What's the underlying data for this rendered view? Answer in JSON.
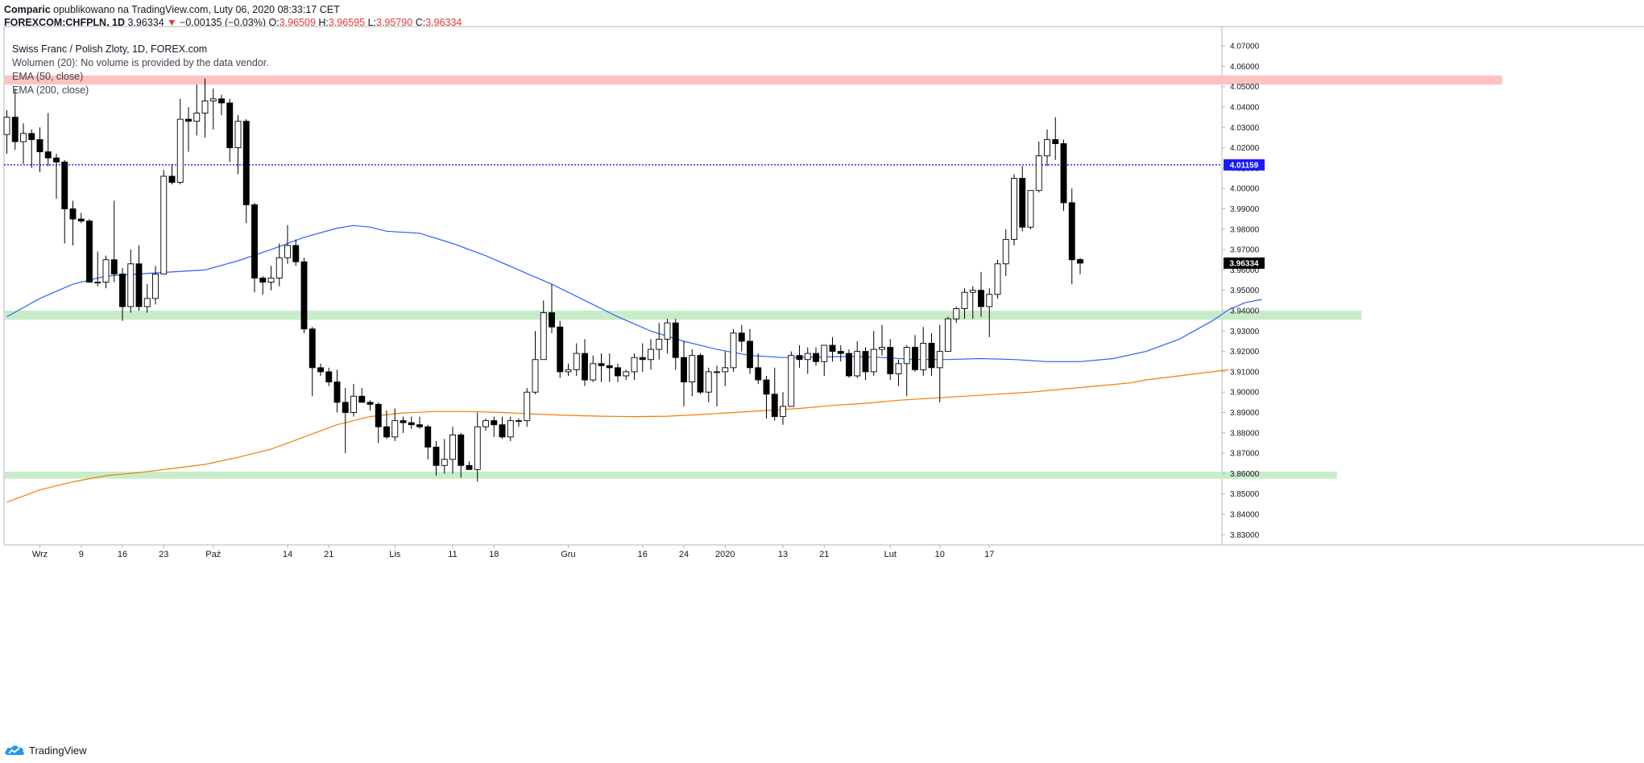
{
  "header": {
    "author": "Comparic",
    "published_text": "opublikowano na TradingView.com, Luty 06, 2020 08:33:17 CET",
    "symbol": "FOREXCOM:CHFPLN, 1D",
    "last_price": "3.96334",
    "change_arrow": "▼",
    "change": "−0.00135 (−0.03%)",
    "open_label": "O:",
    "open": "3.96509",
    "high_label": "H:",
    "high": "3.96595",
    "low_label": "L:",
    "low": "3.95790",
    "close_label": "C:",
    "close": "3.96334"
  },
  "legend": {
    "title": "Swiss Franc / Polish Zloty, 1D, FOREX.com",
    "volume": "Wolumen (20): No volume is provided by the data vendor.",
    "ema50": "EMA (50, close)",
    "ema200": "EMA (200, close)"
  },
  "footer": {
    "brand": "TradingView"
  },
  "colors": {
    "up_candle": "#ffffff",
    "down_candle": "#000000",
    "wick": "#000000",
    "ema50": "#2962ff",
    "ema200": "#f57c00",
    "resistance_zone": "#ffc2c2",
    "support_zone": "#c8ecc8",
    "hline": "#1a1aff",
    "price_badge": "#000000",
    "hline_badge": "#1a1aff"
  },
  "chart_data": {
    "type": "candlestick",
    "ylim": [
      3.825,
      4.0795
    ],
    "y_ticks": [
      "4.07000",
      "4.06000",
      "4.05000",
      "4.04000",
      "4.03000",
      "4.02000",
      "4.01000",
      "4.00000",
      "3.99000",
      "3.98000",
      "3.97000",
      "3.96000",
      "3.95000",
      "3.94000",
      "3.93000",
      "3.92000",
      "3.91000",
      "3.90000",
      "3.89000",
      "3.88000",
      "3.87000",
      "3.86000",
      "3.85000",
      "3.84000",
      "3.83000"
    ],
    "x_ticks": [
      {
        "label": "Wrz",
        "idx": 4
      },
      {
        "label": "9",
        "idx": 9
      },
      {
        "label": "16",
        "idx": 14
      },
      {
        "label": "23",
        "idx": 19
      },
      {
        "label": "Paź",
        "idx": 25
      },
      {
        "label": "14",
        "idx": 34
      },
      {
        "label": "21",
        "idx": 39
      },
      {
        "label": "Lis",
        "idx": 47
      },
      {
        "label": "11",
        "idx": 54
      },
      {
        "label": "18",
        "idx": 59
      },
      {
        "label": "Gru",
        "idx": 68
      },
      {
        "label": "16",
        "idx": 77
      },
      {
        "label": "24",
        "idx": 82
      },
      {
        "label": "2020",
        "idx": 87
      },
      {
        "label": "13",
        "idx": 94
      },
      {
        "label": "21",
        "idx": 99
      },
      {
        "label": "Lut",
        "idx": 107
      },
      {
        "label": "10",
        "idx": 113
      },
      {
        "label": "17",
        "idx": 119
      }
    ],
    "candles": [
      [
        4.0265,
        4.0385,
        4.017,
        4.035
      ],
      [
        4.035,
        4.049,
        4.019,
        4.023
      ],
      [
        4.023,
        4.032,
        4.012,
        4.027
      ],
      [
        4.027,
        4.029,
        4.01,
        4.024
      ],
      [
        4.024,
        4.03,
        4.008,
        4.018
      ],
      [
        4.018,
        4.037,
        4.011,
        4.015
      ],
      [
        4.015,
        4.017,
        3.995,
        4.013
      ],
      [
        4.013,
        4.014,
        3.973,
        3.99
      ],
      [
        3.99,
        3.994,
        3.972,
        3.985
      ],
      [
        3.985,
        3.988,
        3.983,
        3.984
      ],
      [
        3.984,
        3.985,
        3.954,
        3.954
      ],
      [
        3.954,
        3.969,
        3.952,
        3.954
      ],
      [
        3.954,
        3.967,
        3.951,
        3.965
      ],
      [
        3.965,
        3.994,
        3.954,
        3.958
      ],
      [
        3.958,
        3.961,
        3.935,
        3.942
      ],
      [
        3.942,
        3.97,
        3.939,
        3.963
      ],
      [
        3.963,
        3.972,
        3.94,
        3.942
      ],
      [
        3.942,
        3.953,
        3.939,
        3.946
      ],
      [
        3.946,
        3.962,
        3.943,
        3.958
      ],
      [
        3.958,
        4.009,
        3.958,
        4.006
      ],
      [
        4.006,
        4.012,
        4.002,
        4.003
      ],
      [
        4.003,
        4.044,
        4.002,
        4.034
      ],
      [
        4.034,
        4.04,
        4.018,
        4.033
      ],
      [
        4.033,
        4.051,
        4.026,
        4.037
      ],
      [
        4.037,
        4.054,
        4.025,
        4.043
      ],
      [
        4.043,
        4.049,
        4.029,
        4.044
      ],
      [
        4.044,
        4.046,
        4.036,
        4.042
      ],
      [
        4.042,
        4.044,
        4.013,
        4.02
      ],
      [
        4.02,
        4.036,
        4.007,
        4.033
      ],
      [
        4.033,
        4.034,
        3.983,
        3.992
      ],
      [
        3.992,
        3.993,
        3.949,
        3.956
      ],
      [
        3.956,
        3.957,
        3.948,
        3.954
      ],
      [
        3.954,
        3.962,
        3.95,
        3.956
      ],
      [
        3.956,
        3.973,
        3.952,
        3.966
      ],
      [
        3.966,
        3.982,
        3.963,
        3.972
      ],
      [
        3.972,
        3.975,
        3.962,
        3.964
      ],
      [
        3.964,
        3.966,
        3.929,
        3.931
      ],
      [
        3.931,
        3.932,
        3.898,
        3.912
      ],
      [
        3.912,
        3.914,
        3.908,
        3.91
      ],
      [
        3.91,
        3.912,
        3.903,
        3.905
      ],
      [
        3.905,
        3.911,
        3.89,
        3.895
      ],
      [
        3.895,
        3.902,
        3.87,
        3.89
      ],
      [
        3.89,
        3.904,
        3.888,
        3.898
      ],
      [
        3.898,
        3.902,
        3.895,
        3.895
      ],
      [
        3.895,
        3.896,
        3.891,
        3.894
      ],
      [
        3.894,
        3.895,
        3.875,
        3.883
      ],
      [
        3.883,
        3.891,
        3.877,
        3.878
      ],
      [
        3.878,
        3.892,
        3.876,
        3.886
      ],
      [
        3.886,
        3.888,
        3.88,
        3.885
      ],
      [
        3.885,
        3.888,
        3.882,
        3.884
      ],
      [
        3.884,
        3.888,
        3.882,
        3.883
      ],
      [
        3.883,
        3.884,
        3.867,
        3.873
      ],
      [
        3.873,
        3.876,
        3.859,
        3.864
      ],
      [
        3.864,
        3.877,
        3.86,
        3.867
      ],
      [
        3.867,
        3.883,
        3.86,
        3.879
      ],
      [
        3.879,
        3.88,
        3.858,
        3.864
      ],
      [
        3.864,
        3.866,
        3.862,
        3.862
      ],
      [
        3.862,
        3.89,
        3.856,
        3.883
      ],
      [
        3.883,
        3.887,
        3.881,
        3.886
      ],
      [
        3.886,
        3.888,
        3.878,
        3.884
      ],
      [
        3.884,
        3.888,
        3.877,
        3.878
      ],
      [
        3.878,
        3.888,
        3.876,
        3.886
      ],
      [
        3.886,
        3.887,
        3.883,
        3.886
      ],
      [
        3.886,
        3.902,
        3.883,
        3.9
      ],
      [
        3.9,
        3.93,
        3.899,
        3.916
      ],
      [
        3.916,
        3.945,
        3.916,
        3.939
      ],
      [
        3.939,
        3.953,
        3.929,
        3.932
      ],
      [
        3.932,
        3.935,
        3.907,
        3.91
      ],
      [
        3.91,
        3.914,
        3.908,
        3.911
      ],
      [
        3.911,
        3.924,
        3.908,
        3.919
      ],
      [
        3.919,
        3.926,
        3.903,
        3.906
      ],
      [
        3.906,
        3.918,
        3.905,
        3.914
      ],
      [
        3.914,
        3.919,
        3.905,
        3.913
      ],
      [
        3.913,
        3.919,
        3.905,
        3.912
      ],
      [
        3.912,
        3.914,
        3.905,
        3.908
      ],
      [
        3.908,
        3.911,
        3.906,
        3.91
      ],
      [
        3.91,
        3.919,
        3.906,
        3.917
      ],
      [
        3.917,
        3.924,
        3.91,
        3.916
      ],
      [
        3.916,
        3.926,
        3.911,
        3.921
      ],
      [
        3.921,
        3.934,
        3.916,
        3.926
      ],
      [
        3.926,
        3.936,
        3.919,
        3.934
      ],
      [
        3.934,
        3.936,
        3.911,
        3.917
      ],
      [
        3.917,
        3.925,
        3.893,
        3.905
      ],
      [
        3.905,
        3.921,
        3.898,
        3.918
      ],
      [
        3.918,
        3.919,
        3.899,
        3.9
      ],
      [
        3.9,
        3.912,
        3.895,
        3.91
      ],
      [
        3.91,
        3.913,
        3.893,
        3.91
      ],
      [
        3.91,
        3.92,
        3.903,
        3.912
      ],
      [
        3.912,
        3.931,
        3.91,
        3.929
      ],
      [
        3.929,
        3.933,
        3.92,
        3.925
      ],
      [
        3.925,
        3.931,
        3.909,
        3.912
      ],
      [
        3.912,
        3.919,
        3.904,
        3.906
      ],
      [
        3.906,
        3.908,
        3.887,
        3.899
      ],
      [
        3.899,
        3.912,
        3.886,
        3.888
      ],
      [
        3.888,
        3.9,
        3.884,
        3.893
      ],
      [
        3.893,
        3.92,
        3.893,
        3.918
      ],
      [
        3.918,
        3.923,
        3.912,
        3.916
      ],
      [
        3.916,
        3.922,
        3.909,
        3.919
      ],
      [
        3.919,
        3.922,
        3.913,
        3.915
      ],
      [
        3.915,
        3.922,
        3.908,
        3.923
      ],
      [
        3.923,
        3.927,
        3.915,
        3.92
      ],
      [
        3.92,
        3.923,
        3.915,
        3.919
      ],
      [
        3.919,
        3.921,
        3.907,
        3.908
      ],
      [
        3.908,
        3.925,
        3.907,
        3.92
      ],
      [
        3.92,
        3.922,
        3.906,
        3.91
      ],
      [
        3.91,
        3.93,
        3.908,
        3.921
      ],
      [
        3.921,
        3.933,
        3.918,
        3.922
      ],
      [
        3.922,
        3.926,
        3.906,
        3.909
      ],
      [
        3.909,
        3.916,
        3.903,
        3.914
      ],
      [
        3.914,
        3.923,
        3.898,
        3.922
      ],
      [
        3.922,
        3.928,
        3.91,
        3.911
      ],
      [
        3.911,
        3.932,
        3.908,
        3.924
      ],
      [
        3.924,
        3.929,
        3.908,
        3.912
      ],
      [
        3.912,
        3.933,
        3.895,
        3.92
      ],
      [
        3.92,
        3.937,
        3.92,
        3.936
      ],
      [
        3.936,
        3.942,
        3.934,
        3.941
      ],
      [
        3.941,
        3.951,
        3.936,
        3.949
      ],
      [
        3.949,
        3.952,
        3.936,
        3.95
      ],
      [
        3.95,
        3.959,
        3.937,
        3.942
      ],
      [
        3.942,
        3.951,
        3.927,
        3.948
      ],
      [
        3.948,
        3.965,
        3.946,
        3.963
      ],
      [
        3.963,
        3.98,
        3.957,
        3.975
      ],
      [
        3.975,
        4.007,
        3.972,
        4.005
      ],
      [
        4.005,
        4.011,
        3.979,
        3.981
      ],
      [
        3.981,
        3.999,
        3.98,
        3.999
      ],
      [
        3.999,
        4.023,
        3.998,
        4.016
      ],
      [
        4.016,
        4.029,
        4.011,
        4.024
      ],
      [
        4.024,
        4.035,
        4.014,
        4.022
      ],
      [
        4.022,
        4.024,
        3.989,
        3.993
      ],
      [
        3.993,
        4.0,
        3.953,
        3.965
      ],
      [
        3.96509,
        3.96595,
        3.9579,
        3.96334
      ]
    ],
    "ema50": [
      [
        0,
        3.937
      ],
      [
        4,
        3.946
      ],
      [
        8,
        3.953
      ],
      [
        12,
        3.957
      ],
      [
        16,
        3.958
      ],
      [
        20,
        3.959
      ],
      [
        24,
        3.96
      ],
      [
        28,
        3.9645
      ],
      [
        32,
        3.97
      ],
      [
        36,
        3.976
      ],
      [
        40,
        3.9805
      ],
      [
        42,
        3.9818
      ],
      [
        44,
        3.981
      ],
      [
        46,
        3.979
      ],
      [
        50,
        3.978
      ],
      [
        54,
        3.973
      ],
      [
        58,
        3.967
      ],
      [
        62,
        3.96
      ],
      [
        66,
        3.953
      ],
      [
        70,
        3.945
      ],
      [
        74,
        3.937
      ],
      [
        78,
        3.93
      ],
      [
        82,
        3.925
      ],
      [
        86,
        3.921
      ],
      [
        90,
        3.918
      ],
      [
        94,
        3.917
      ],
      [
        98,
        3.9172
      ],
      [
        102,
        3.9175
      ],
      [
        106,
        3.917
      ],
      [
        110,
        3.916
      ],
      [
        114,
        3.916
      ],
      [
        118,
        3.9165
      ],
      [
        122,
        3.916
      ],
      [
        126,
        3.915
      ],
      [
        130,
        3.915
      ],
      [
        134,
        3.9165
      ],
      [
        138,
        3.92
      ],
      [
        142,
        3.926
      ],
      [
        146,
        3.935
      ],
      [
        148,
        3.9405
      ],
      [
        150,
        3.944
      ],
      [
        152,
        3.9455
      ]
    ],
    "ema200": [
      [
        0,
        3.846
      ],
      [
        4,
        3.852
      ],
      [
        8,
        3.856
      ],
      [
        12,
        3.859
      ],
      [
        16,
        3.8605
      ],
      [
        20,
        3.8625
      ],
      [
        24,
        3.8645
      ],
      [
        28,
        3.868
      ],
      [
        32,
        3.872
      ],
      [
        36,
        3.878
      ],
      [
        40,
        3.884
      ],
      [
        44,
        3.888
      ],
      [
        48,
        3.8898
      ],
      [
        52,
        3.8905
      ],
      [
        56,
        3.8905
      ],
      [
        60,
        3.89
      ],
      [
        64,
        3.8892
      ],
      [
        68,
        3.8886
      ],
      [
        72,
        3.8882
      ],
      [
        76,
        3.888
      ],
      [
        80,
        3.8882
      ],
      [
        84,
        3.889
      ],
      [
        88,
        3.89
      ],
      [
        92,
        3.891
      ],
      [
        96,
        3.892
      ],
      [
        100,
        3.8935
      ],
      [
        104,
        3.8945
      ],
      [
        108,
        3.896
      ],
      [
        112,
        3.897
      ],
      [
        116,
        3.898
      ],
      [
        120,
        3.899
      ],
      [
        124,
        3.9
      ],
      [
        128,
        3.9015
      ],
      [
        132,
        3.903
      ],
      [
        136,
        3.9045
      ],
      [
        138,
        3.906
      ],
      [
        142,
        3.908
      ],
      [
        146,
        3.91
      ],
      [
        148,
        3.911
      ]
    ],
    "zones": [
      {
        "kind": "resistance",
        "y_top": 4.0555,
        "y_bottom": 4.051,
        "from": 0,
        "to": 181
      },
      {
        "kind": "support",
        "y_top": 3.94,
        "y_bottom": 3.9355,
        "from": 0,
        "to": 164
      },
      {
        "kind": "support",
        "y_top": 3.861,
        "y_bottom": 3.8575,
        "from": 0,
        "to": 161
      }
    ],
    "hline": {
      "value": 4.01159,
      "label": "4.01159"
    },
    "last_price_label": "3.96334"
  }
}
